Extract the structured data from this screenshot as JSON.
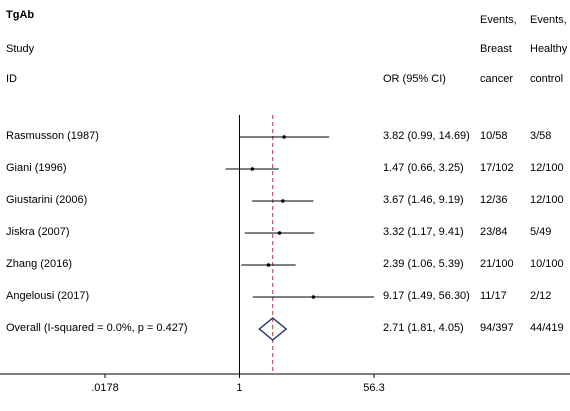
{
  "chart_data": {
    "type": "forest",
    "title": "TgAb",
    "headers": {
      "study": [
        "Study",
        "ID"
      ],
      "or": "OR (95% CI)",
      "events_breast": [
        "Events,",
        "Breast",
        "cancer"
      ],
      "events_healthy": [
        "Events,",
        "Healthy",
        "control"
      ]
    },
    "x_scale": "log",
    "x_ticks": [
      {
        "value": 0.0178,
        "label": ".0178"
      },
      {
        "value": 1,
        "label": "1"
      },
      {
        "value": 56.3,
        "label": "56.3"
      }
    ],
    "reference_line": 1,
    "pooled_line": 2.71,
    "studies": [
      {
        "label": "Rasmusson (1987)",
        "or": 3.82,
        "lo": 0.99,
        "hi": 14.69,
        "ci_text": "3.82 (0.99, 14.69)",
        "events_breast": "10/58",
        "events_healthy": "3/58"
      },
      {
        "label": "Giani (1996)",
        "or": 1.47,
        "lo": 0.66,
        "hi": 3.25,
        "ci_text": "1.47 (0.66, 3.25)",
        "events_breast": "17/102",
        "events_healthy": "12/100"
      },
      {
        "label": "Giustarini (2006)",
        "or": 3.67,
        "lo": 1.46,
        "hi": 9.19,
        "ci_text": "3.67 (1.46, 9.19)",
        "events_breast": "12/36",
        "events_healthy": "12/100"
      },
      {
        "label": "Jiskra (2007)",
        "or": 3.32,
        "lo": 1.17,
        "hi": 9.41,
        "ci_text": "3.32 (1.17, 9.41)",
        "events_breast": "23/84",
        "events_healthy": "5/49"
      },
      {
        "label": "Zhang (2016)",
        "or": 2.39,
        "lo": 1.06,
        "hi": 5.39,
        "ci_text": "2.39 (1.06, 5.39)",
        "events_breast": "21/100",
        "events_healthy": "10/100"
      },
      {
        "label": "Angelousi (2017)",
        "or": 9.17,
        "lo": 1.49,
        "hi": 56.3,
        "ci_text": "9.17 (1.49, 56.30)",
        "events_breast": "11/17",
        "events_healthy": "2/12"
      }
    ],
    "overall": {
      "label": "Overall  (I-squared = 0.0%, p = 0.427)",
      "or": 2.71,
      "lo": 1.81,
      "hi": 4.05,
      "ci_text": "2.71 (1.81, 4.05)",
      "events_breast": "94/397",
      "events_healthy": "44/419"
    },
    "colors": {
      "diamond": "#1a2a6c",
      "pooled_line": "#b0303a",
      "lines": "#000000"
    }
  }
}
